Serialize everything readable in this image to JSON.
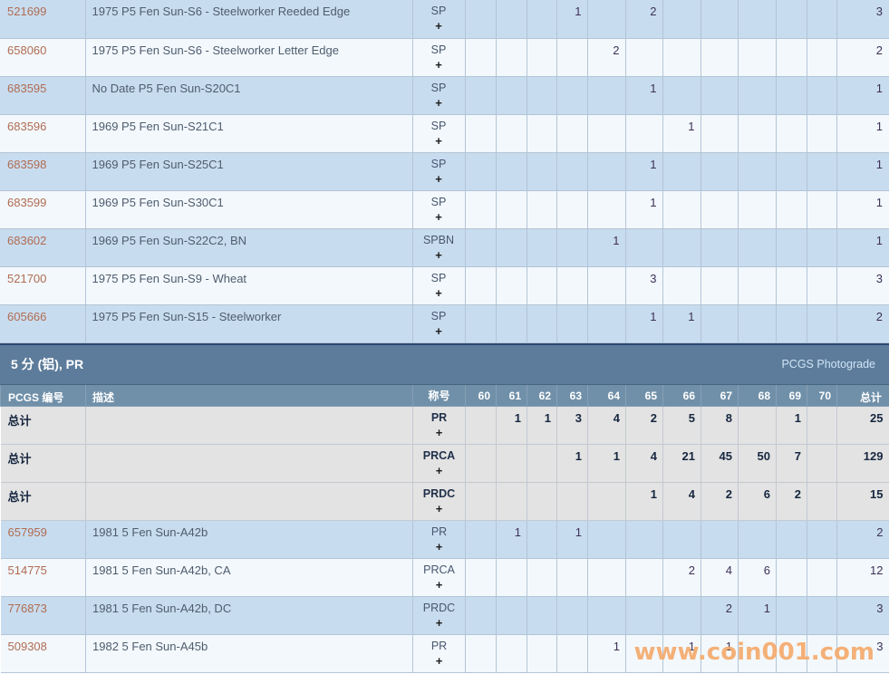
{
  "colors": {
    "row_blue": "#c8dcef",
    "row_white": "#f3f8fc",
    "row_gray": "#e3e3e3",
    "section_bar": "#5d7c9b",
    "column_header": "#7090a9",
    "pcgs_link": "#b06c52",
    "description_text": "#4e5d6e",
    "watermark_orange": "#f5aa6c"
  },
  "plus_label": "+",
  "header": {
    "pcgs": "PCGS 编号",
    "desc": "描述",
    "desig": "称号",
    "total": "总计"
  },
  "grade_labels": [
    "60",
    "61",
    "62",
    "63",
    "64",
    "65",
    "66",
    "67",
    "68",
    "69",
    "70"
  ],
  "section": {
    "title": "5 分 (铝), PR",
    "photograde_link": "PCGS Photograde"
  },
  "watermark": "www.coin001.com",
  "sp_rows": [
    {
      "pcgs": "521699",
      "desc": "1975 P5 Fen Sun-S6 - Steelworker Reeded Edge",
      "desig": "SP",
      "grades": [
        "",
        "",
        "",
        "1",
        "",
        "2",
        "",
        "",
        "",
        "",
        ""
      ],
      "total": "3",
      "variant": "blue",
      "is_total": false
    },
    {
      "pcgs": "658060",
      "desc": "1975 P5 Fen Sun-S6 - Steelworker Letter Edge",
      "desig": "SP",
      "grades": [
        "",
        "",
        "",
        "",
        "2",
        "",
        "",
        "",
        "",
        "",
        ""
      ],
      "total": "2",
      "variant": "white",
      "is_total": false
    },
    {
      "pcgs": "683595",
      "desc": "No Date P5 Fen Sun-S20C1",
      "desig": "SP",
      "grades": [
        "",
        "",
        "",
        "",
        "",
        "1",
        "",
        "",
        "",
        "",
        ""
      ],
      "total": "1",
      "variant": "blue",
      "is_total": false
    },
    {
      "pcgs": "683596",
      "desc": "1969 P5 Fen Sun-S21C1",
      "desig": "SP",
      "grades": [
        "",
        "",
        "",
        "",
        "",
        "",
        "1",
        "",
        "",
        "",
        ""
      ],
      "total": "1",
      "variant": "white",
      "is_total": false
    },
    {
      "pcgs": "683598",
      "desc": "1969 P5 Fen Sun-S25C1",
      "desig": "SP",
      "grades": [
        "",
        "",
        "",
        "",
        "",
        "1",
        "",
        "",
        "",
        "",
        ""
      ],
      "total": "1",
      "variant": "blue",
      "is_total": false
    },
    {
      "pcgs": "683599",
      "desc": "1969 P5 Fen Sun-S30C1",
      "desig": "SP",
      "grades": [
        "",
        "",
        "",
        "",
        "",
        "1",
        "",
        "",
        "",
        "",
        ""
      ],
      "total": "1",
      "variant": "white",
      "is_total": false
    },
    {
      "pcgs": "683602",
      "desc": "1969 P5 Fen Sun-S22C2, BN",
      "desig": "SPBN",
      "grades": [
        "",
        "",
        "",
        "",
        "1",
        "",
        "",
        "",
        "",
        "",
        ""
      ],
      "total": "1",
      "variant": "blue",
      "is_total": false
    },
    {
      "pcgs": "521700",
      "desc": "1975 P5 Fen Sun-S9 - Wheat",
      "desig": "SP",
      "grades": [
        "",
        "",
        "",
        "",
        "",
        "3",
        "",
        "",
        "",
        "",
        ""
      ],
      "total": "3",
      "variant": "white",
      "is_total": false
    },
    {
      "pcgs": "605666",
      "desc": "1975 P5 Fen Sun-S15 - Steelworker",
      "desig": "SP",
      "grades": [
        "",
        "",
        "",
        "",
        "",
        "1",
        "1",
        "",
        "",
        "",
        ""
      ],
      "total": "2",
      "variant": "blue",
      "is_total": false
    }
  ],
  "pr_rows": [
    {
      "pcgs": "总计",
      "desc": "",
      "desig": "PR",
      "grades": [
        "",
        "1",
        "1",
        "3",
        "4",
        "2",
        "5",
        "8",
        "",
        "1",
        ""
      ],
      "total": "25",
      "variant": "gray",
      "is_total": true
    },
    {
      "pcgs": "总计",
      "desc": "",
      "desig": "PRCA",
      "grades": [
        "",
        "",
        "",
        "1",
        "1",
        "4",
        "21",
        "45",
        "50",
        "7",
        ""
      ],
      "total": "129",
      "variant": "gray",
      "is_total": true
    },
    {
      "pcgs": "总计",
      "desc": "",
      "desig": "PRDC",
      "grades": [
        "",
        "",
        "",
        "",
        "",
        "1",
        "4",
        "2",
        "6",
        "2",
        ""
      ],
      "total": "15",
      "variant": "gray",
      "is_total": true
    },
    {
      "pcgs": "657959",
      "desc": "1981 5 Fen Sun-A42b",
      "desig": "PR",
      "grades": [
        "",
        "1",
        "",
        "1",
        "",
        "",
        "",
        "",
        "",
        "",
        ""
      ],
      "total": "2",
      "variant": "blue",
      "is_total": false
    },
    {
      "pcgs": "514775",
      "desc": "1981 5 Fen Sun-A42b, CA",
      "desig": "PRCA",
      "grades": [
        "",
        "",
        "",
        "",
        "",
        "",
        "2",
        "4",
        "6",
        "",
        ""
      ],
      "total": "12",
      "variant": "white",
      "is_total": false
    },
    {
      "pcgs": "776873",
      "desc": "1981 5 Fen Sun-A42b, DC",
      "desig": "PRDC",
      "grades": [
        "",
        "",
        "",
        "",
        "",
        "",
        "",
        "2",
        "1",
        "",
        ""
      ],
      "total": "3",
      "variant": "blue",
      "is_total": false
    },
    {
      "pcgs": "509308",
      "desc": "1982 5 Fen Sun-A45b",
      "desig": "PR",
      "grades": [
        "",
        "",
        "",
        "",
        "1",
        "",
        "1",
        "1",
        "",
        "",
        ""
      ],
      "total": "3",
      "variant": "white",
      "is_total": false
    }
  ]
}
